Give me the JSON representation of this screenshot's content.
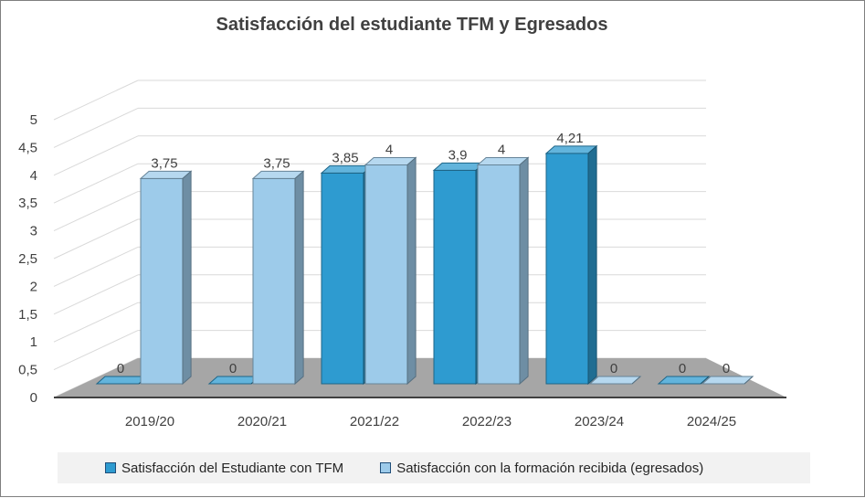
{
  "chart_data": {
    "type": "bar",
    "title": "Satisfacción del estudiante TFM y Egresados",
    "categories": [
      "2019/20",
      "2020/21",
      "2021/22",
      "2022/23",
      "2023/24",
      "2024/25"
    ],
    "series": [
      {
        "name": "Satisfacción del Estudiante con TFM",
        "values": [
          0,
          0,
          3.85,
          3.9,
          4.21,
          0
        ],
        "labels": [
          "0",
          "0",
          "3,85",
          "3,9",
          "4,21",
          "0"
        ],
        "color": "#2e9bd0"
      },
      {
        "name": "Satisfacción con la formación recibida (egresados)",
        "values": [
          3.75,
          3.75,
          4,
          4,
          0,
          0
        ],
        "labels": [
          "3,75",
          "3,75",
          "4",
          "4",
          "0",
          "0"
        ],
        "color": "#9dcbea"
      }
    ],
    "y_ticks": [
      "0",
      "0,5",
      "1",
      "1,5",
      "2",
      "2,5",
      "3",
      "3,5",
      "4",
      "4,5",
      "5"
    ],
    "ylim": [
      0,
      5
    ],
    "grid": true,
    "legend_position": "bottom",
    "floor_color": "#a6a6a6"
  }
}
